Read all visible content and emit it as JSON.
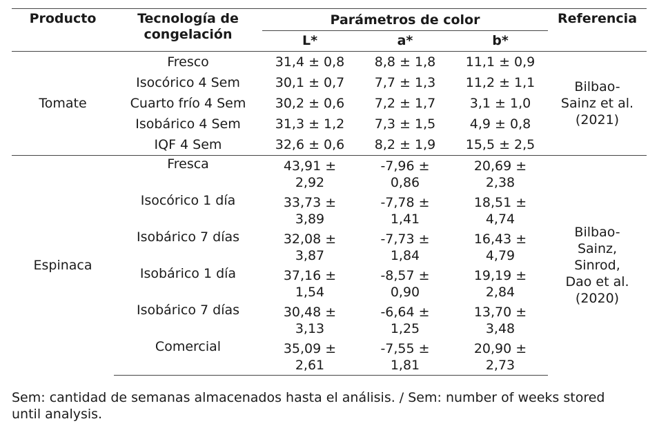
{
  "header": {
    "producto": "Producto",
    "tecnologia_1": "Tecnología de",
    "tecnologia_2": "congelación",
    "parametros": "Parámetros de color",
    "referencia": "Referencia",
    "L": "L*",
    "a": "a*",
    "b": "b*"
  },
  "tomate": {
    "product": "Tomate",
    "reference_lines": [
      "Bilbao-",
      "Sainz et al.",
      "(2021)"
    ],
    "rows": [
      {
        "tech": "Fresco",
        "L": "31,4 ± 0,8",
        "a": "8,8 ± 1,8",
        "b": "11,1 ± 0,9"
      },
      {
        "tech": "Isocórico 4 Sem",
        "L": "30,1 ± 0,7",
        "a": "7,7 ± 1,3",
        "b": "11,2 ± 1,1"
      },
      {
        "tech": "Cuarto frío 4 Sem",
        "L": "30,2 ± 0,6",
        "a": "7,2 ± 1,7",
        "b": "3,1 ± 1,0"
      },
      {
        "tech": "Isobárico 4 Sem",
        "L": "31,3 ± 1,2",
        "a": "7,3 ± 1,5",
        "b": "4,9 ± 0,8"
      },
      {
        "tech": "IQF 4 Sem",
        "L": "32,6 ± 0,6",
        "a": "8,2 ± 1,9",
        "b": "15,5 ± 2,5"
      }
    ]
  },
  "espinaca": {
    "product": "Espinaca",
    "reference_lines": [
      "Bilbao-",
      "Sainz,",
      "Sinrod,",
      "Dao et al.",
      "(2020)"
    ],
    "rows": [
      {
        "tech": "Fresca",
        "L": [
          "43,91 ±",
          "2,92"
        ],
        "a": [
          "-7,96 ±",
          "0,86"
        ],
        "b": [
          "20,69 ±",
          "2,38"
        ]
      },
      {
        "tech": "Isocórico 1 día",
        "L": [
          "33,73 ±",
          "3,89"
        ],
        "a": [
          "-7,78 ±",
          "1,41"
        ],
        "b": [
          "18,51 ±",
          "4,74"
        ]
      },
      {
        "tech": "Isobárico 7 días",
        "L": [
          "32,08 ±",
          "3,87"
        ],
        "a": [
          "-7,73 ±",
          "1,84"
        ],
        "b": [
          "16,43 ±",
          "4,79"
        ]
      },
      {
        "tech": "Isobárico 1 día",
        "L": [
          "37,16 ±",
          "1,54"
        ],
        "a": [
          "-8,57 ±",
          "0,90"
        ],
        "b": [
          "19,19 ±",
          "2,84"
        ]
      },
      {
        "tech": "Isobárico 7 días",
        "L": [
          "30,48 ±",
          "3,13"
        ],
        "a": [
          "-6,64 ±",
          "1,25"
        ],
        "b": [
          "13,70 ±",
          "3,48"
        ]
      },
      {
        "tech": "Comercial",
        "L": [
          "35,09 ±",
          "2,61"
        ],
        "a": [
          "-7,55 ±",
          "1,81"
        ],
        "b": [
          "20,90 ±",
          "2,73"
        ]
      }
    ]
  },
  "note": {
    "line1": "Sem: cantidad de semanas almacenados hasta el análisis. / Sem: number of weeks stored",
    "line2": "until analysis."
  }
}
